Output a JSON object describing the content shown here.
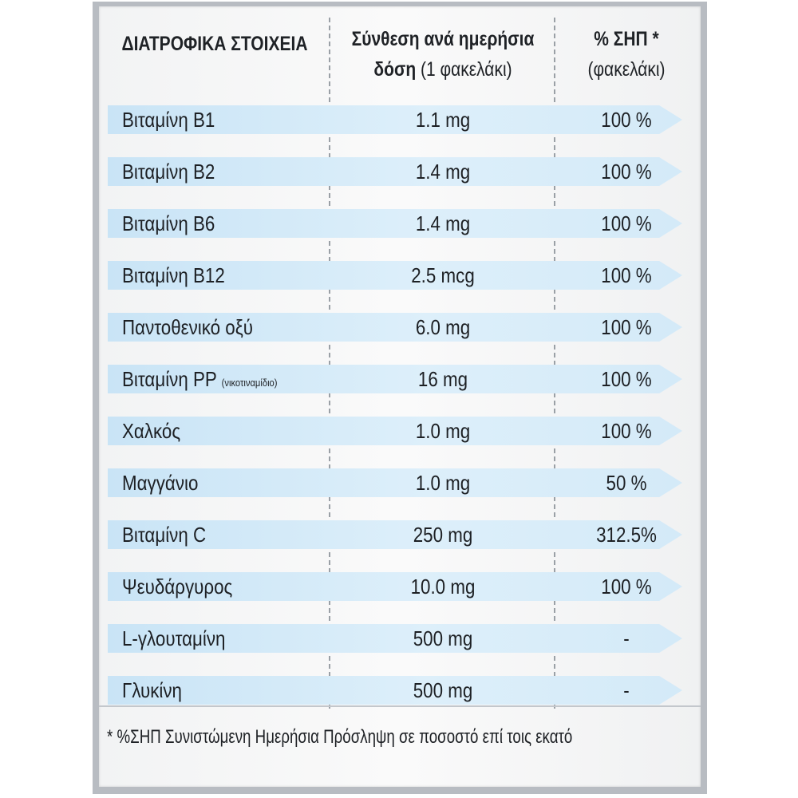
{
  "header": {
    "col1": "ΔΙΑΤΡΟΦΙΚΑ ΣΤΟΙΧΕΙΑ",
    "col2_line1": "Σύνθεση ανά ημερήσια",
    "col2_line2_bold": "δόση",
    "col2_line2_light": "(1 φακελάκι)",
    "col3_line1": "% ΣΗΠ *",
    "col3_line2": "(φακελάκι)"
  },
  "rows": [
    {
      "name": "Βιταμίνη Β1",
      "dose": "1.1 mg",
      "rda": "100 %"
    },
    {
      "name": "Βιταμίνη Β2",
      "dose": "1.4 mg",
      "rda": "100 %"
    },
    {
      "name": "Βιταμίνη Β6",
      "dose": "1.4 mg",
      "rda": "100 %"
    },
    {
      "name": "Βιταμίνη Β12",
      "dose": "2.5 mcg",
      "rda": "100 %"
    },
    {
      "name": "Παντοθενικό οξύ",
      "dose": "6.0 mg",
      "rda": "100 %"
    },
    {
      "name": "Βιταμίνη PP",
      "note": "(νικοτιναμίδιο)",
      "dose": "16 mg",
      "rda": "100 %"
    },
    {
      "name": "Χαλκός",
      "dose": "1.0 mg",
      "rda": "100 %"
    },
    {
      "name": "Μαγγάνιο",
      "dose": "1.0 mg",
      "rda": "50 %"
    },
    {
      "name": "Βιταμίνη C",
      "dose": "250 mg",
      "rda": "312.5%"
    },
    {
      "name": "Ψευδάργυρος",
      "dose": "10.0 mg",
      "rda": "100 %"
    },
    {
      "name": "L-γλουταμίνη",
      "dose": "500 mg",
      "rda": "-"
    },
    {
      "name": "Γλυκίνη",
      "dose": "500 mg",
      "rda": "-"
    }
  ],
  "footnote": "* %ΣΗΠ Συνιστώμενη Ημερήσια Πρόσληψη σε ποσοστό επί τοις εκατό",
  "colors": {
    "band": "#cfe7f7",
    "text": "#1d2024",
    "frame": "#b8bcc2"
  }
}
